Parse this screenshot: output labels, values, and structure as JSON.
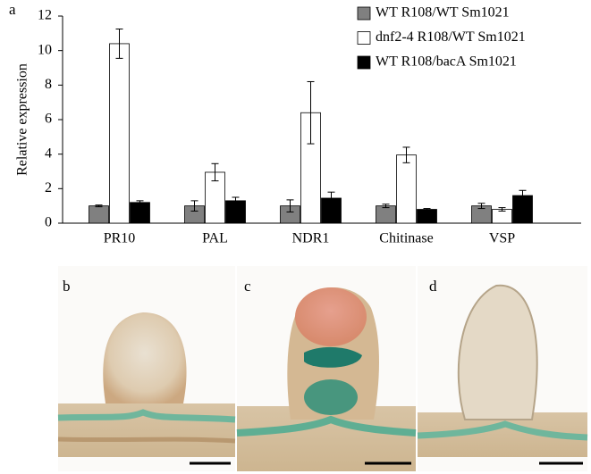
{
  "chart_data": {
    "type": "bar",
    "panel_label": "a",
    "ylabel": "Relative expression",
    "categories": [
      "PR10",
      "PAL",
      "NDR1",
      "Chitinase",
      "VSP"
    ],
    "series": [
      {
        "name": "WT R108/WT Sm1021",
        "color": "#808080",
        "values": [
          1.0,
          1.0,
          1.0,
          1.0,
          1.0
        ],
        "errors": [
          0.05,
          0.3,
          0.35,
          0.1,
          0.15
        ]
      },
      {
        "name": "dnf2-4 R108/WT Sm1021",
        "color": "#ffffff",
        "values": [
          10.4,
          2.95,
          6.4,
          3.95,
          0.8
        ],
        "errors": [
          0.85,
          0.5,
          1.8,
          0.45,
          0.1
        ]
      },
      {
        "name": "WT R108/bacA Sm1021",
        "color": "#000000",
        "values": [
          1.2,
          1.3,
          1.45,
          0.8,
          1.6
        ],
        "errors": [
          0.1,
          0.2,
          0.35,
          0.05,
          0.3
        ]
      }
    ],
    "ylim": [
      0,
      12
    ],
    "yticks": [
      0,
      2,
      4,
      6,
      8,
      10,
      12
    ],
    "grid": false,
    "legend": "top-right"
  },
  "image_panels": [
    {
      "label": "b"
    },
    {
      "label": "c"
    },
    {
      "label": "d"
    }
  ]
}
